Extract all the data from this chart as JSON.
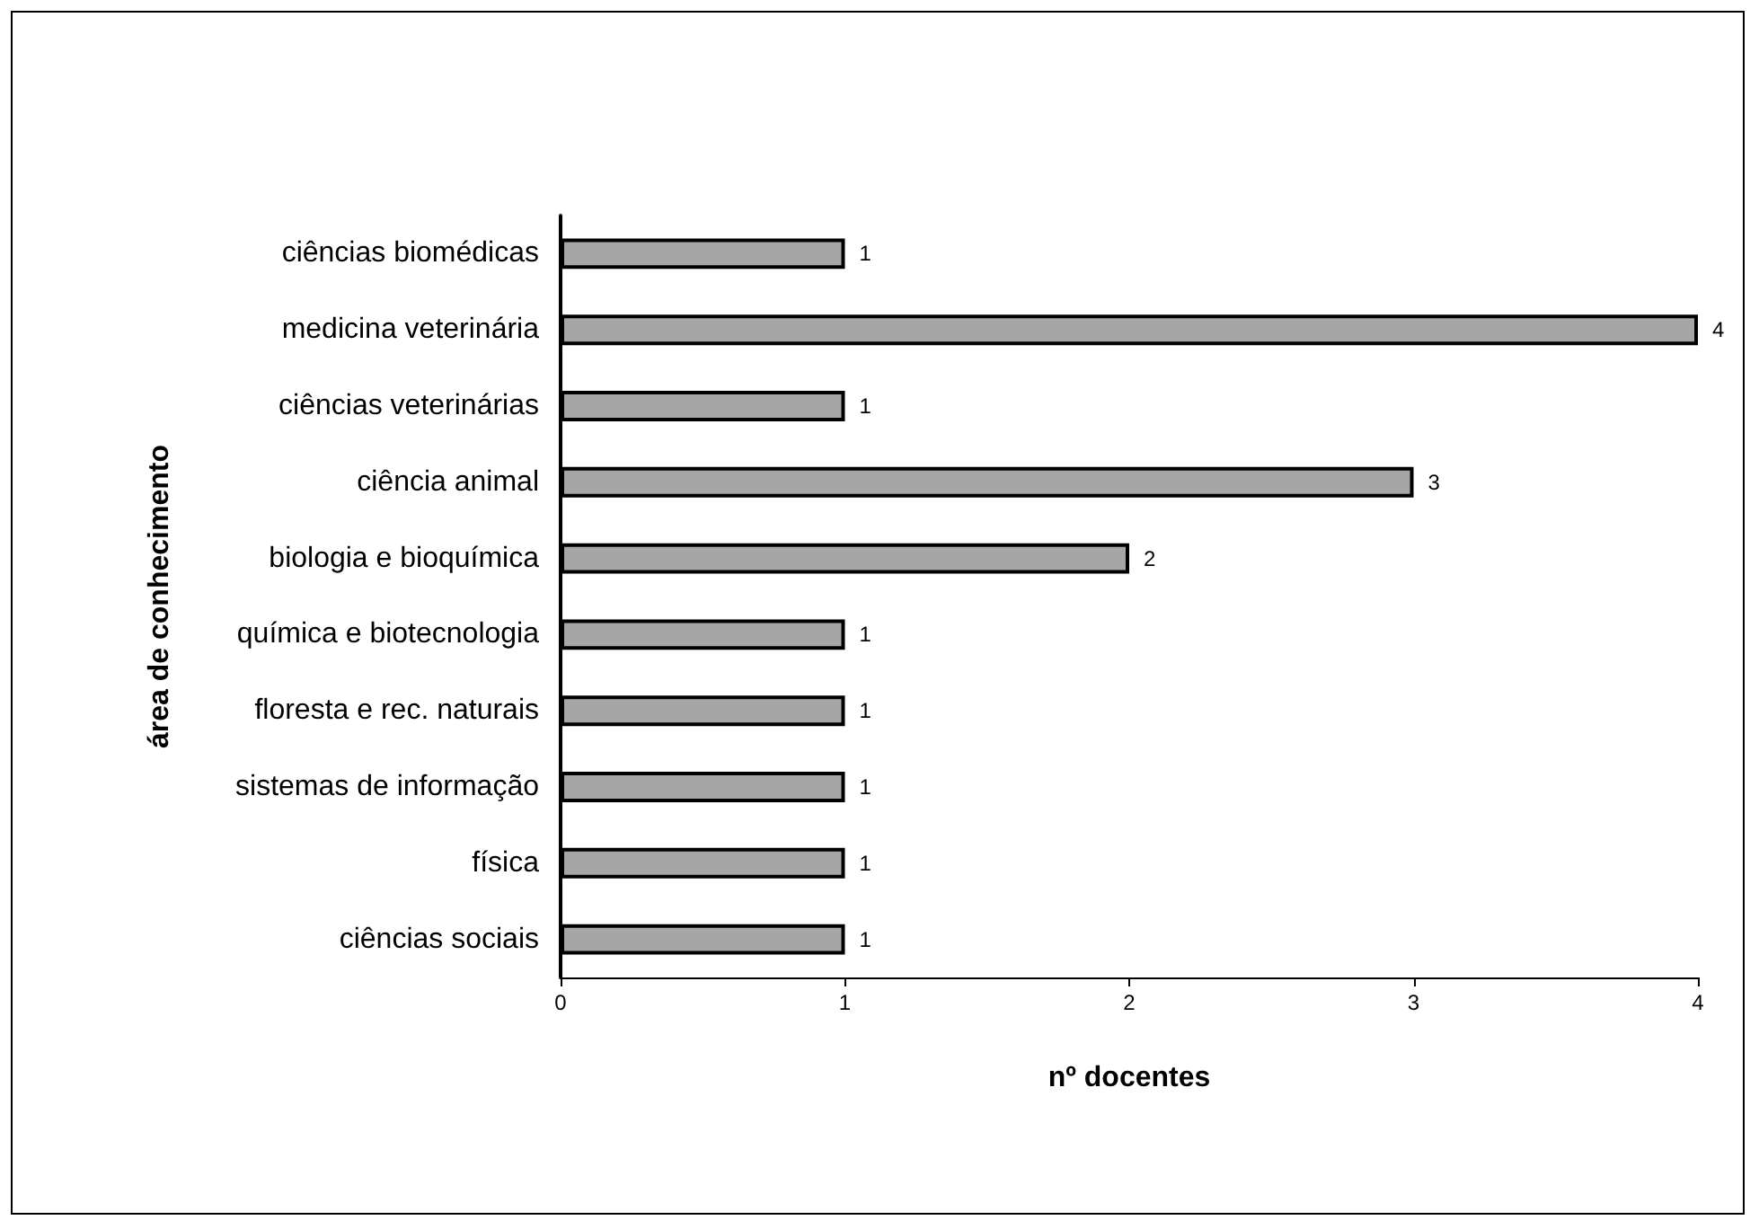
{
  "chart_data": {
    "type": "bar",
    "orientation": "horizontal",
    "xlabel": "nº docentes",
    "ylabel": "área de conhecimento",
    "categories": [
      "ciências biomédicas",
      "medicina veterinária",
      "ciências veterinárias",
      "ciência animal",
      "biologia e bioquímica",
      "química e biotecnologia",
      "floresta e rec. naturais",
      "sistemas de informação",
      "física",
      "ciências sociais"
    ],
    "values": [
      1,
      4,
      1,
      3,
      2,
      1,
      1,
      1,
      1,
      1
    ],
    "color": "#a6a6a6",
    "xlim": [
      0,
      4
    ],
    "xticks": [
      0,
      1,
      2,
      3,
      4
    ],
    "grid": false,
    "data_labels": true
  }
}
